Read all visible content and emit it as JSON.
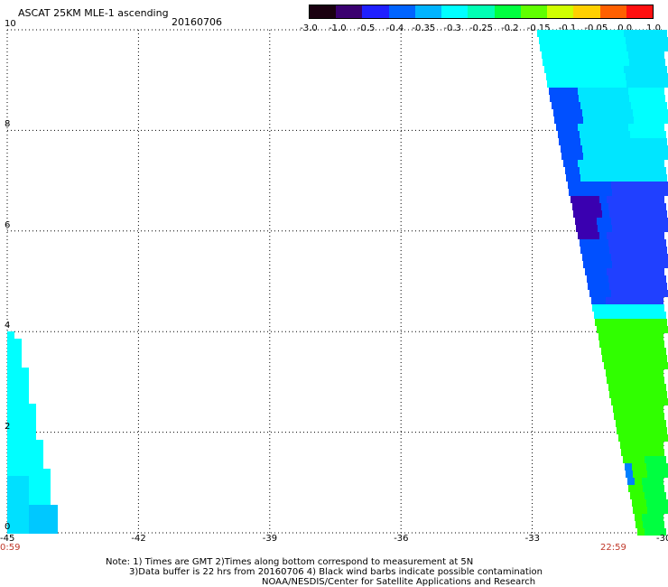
{
  "header": {
    "title": "ASCAT 25KM MLE-1 ascending",
    "date": "20160706"
  },
  "colorbar": {
    "labels": [
      "-3.0",
      "-1.0",
      "-0.5",
      "-0.4",
      "-0.35",
      "-0.3",
      "-0.25",
      "-0.2",
      "-0.15",
      "-0.1",
      "-0.05",
      "0.0",
      "1.0"
    ],
    "colors": [
      "#1a0010",
      "#3a0070",
      "#2020ff",
      "#0064ff",
      "#00b4ff",
      "#00ffff",
      "#00ffb4",
      "#00ff40",
      "#60ff00",
      "#d0ff00",
      "#ffd000",
      "#ff6000",
      "#ff1010"
    ]
  },
  "axes": {
    "x_ticks": [
      "-45",
      "-42",
      "-39",
      "-36",
      "-33",
      "-30"
    ],
    "y_ticks": [
      "0",
      "2",
      "4",
      "6",
      "8",
      "10"
    ]
  },
  "times": {
    "left": "0:59",
    "right": "22:59"
  },
  "notes": {
    "line1": "Note: 1) Times are GMT 2)Times along bottom correspond to measurement at 5N",
    "line2": "3)Data buffer is 22 hrs from 20160706 4) Black wind barbs indicate possible contamination",
    "line3": "NOAA/NESDIS/Center for Satellite Applications and Research"
  },
  "map_data": {
    "lon_range": [
      -45,
      -30
    ],
    "lat_range": [
      0,
      10
    ],
    "swaths": [
      {
        "name": "left",
        "colors": [
          "#00ffff",
          "#00ffcc",
          "#00e0ff",
          "#00c8ff"
        ]
      },
      {
        "name": "right",
        "colors": [
          "#00ffff",
          "#00e6ff",
          "#0050ff",
          "#2040ff",
          "#3a00b0",
          "#00ff40",
          "#30ff00",
          "#0080ff"
        ]
      }
    ]
  }
}
